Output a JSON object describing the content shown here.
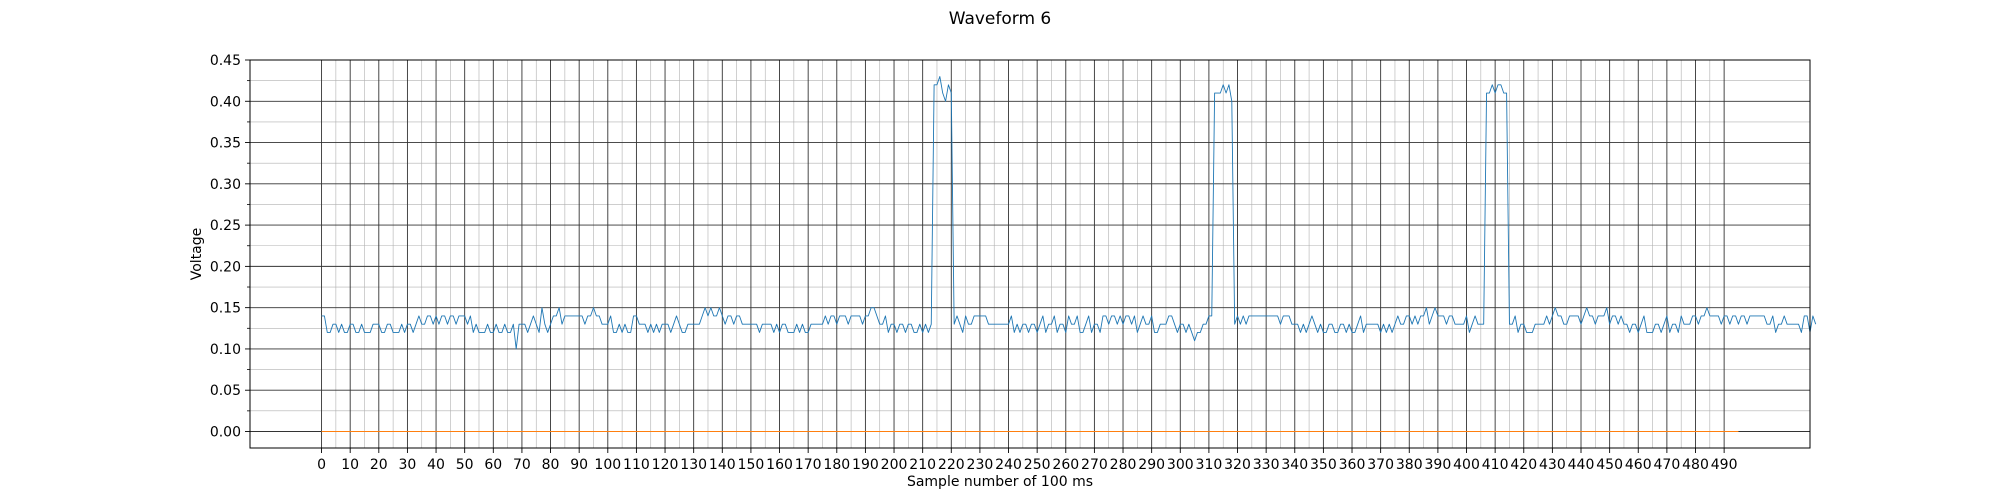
{
  "chart_data": {
    "type": "line",
    "title": "Waveform 6",
    "xlabel": "Sample number of 100 ms",
    "ylabel": "Voltage",
    "xlim": [
      -25,
      520
    ],
    "ylim": [
      -0.02,
      0.45
    ],
    "x_ticks": [
      0,
      10,
      20,
      30,
      40,
      50,
      60,
      70,
      80,
      90,
      100,
      110,
      120,
      130,
      140,
      150,
      160,
      170,
      180,
      190,
      200,
      210,
      220,
      230,
      240,
      250,
      260,
      270,
      280,
      290,
      300,
      310,
      320,
      330,
      340,
      350,
      360,
      370,
      380,
      390,
      400,
      410,
      420,
      430,
      440,
      450,
      460,
      470,
      480,
      490
    ],
    "x_minor_step": 5,
    "y_ticks": [
      "0.00",
      "0.05",
      "0.10",
      "0.15",
      "0.20",
      "0.25",
      "0.30",
      "0.35",
      "0.40",
      "0.45"
    ],
    "y_minor_step": 0.025,
    "grid": true,
    "series": [
      {
        "color": "#1f77b4",
        "x_start": 0,
        "x_step": 1,
        "values": [
          0.14,
          0.14,
          0.12,
          0.12,
          0.13,
          0.13,
          0.12,
          0.13,
          0.12,
          0.12,
          0.13,
          0.13,
          0.12,
          0.12,
          0.13,
          0.12,
          0.12,
          0.12,
          0.13,
          0.13,
          0.13,
          0.12,
          0.12,
          0.13,
          0.13,
          0.12,
          0.12,
          0.12,
          0.13,
          0.12,
          0.13,
          0.13,
          0.12,
          0.13,
          0.14,
          0.13,
          0.13,
          0.14,
          0.14,
          0.13,
          0.14,
          0.13,
          0.14,
          0.14,
          0.13,
          0.14,
          0.14,
          0.13,
          0.14,
          0.14,
          0.14,
          0.13,
          0.14,
          0.12,
          0.13,
          0.12,
          0.12,
          0.12,
          0.13,
          0.12,
          0.12,
          0.13,
          0.12,
          0.12,
          0.13,
          0.12,
          0.12,
          0.13,
          0.1,
          0.13,
          0.13,
          0.13,
          0.12,
          0.13,
          0.14,
          0.13,
          0.12,
          0.15,
          0.13,
          0.12,
          0.13,
          0.14,
          0.14,
          0.15,
          0.13,
          0.14,
          0.14,
          0.14,
          0.14,
          0.14,
          0.14,
          0.14,
          0.13,
          0.14,
          0.14,
          0.15,
          0.14,
          0.14,
          0.13,
          0.13,
          0.13,
          0.14,
          0.12,
          0.12,
          0.13,
          0.12,
          0.13,
          0.12,
          0.12,
          0.14,
          0.14,
          0.13,
          0.13,
          0.13,
          0.12,
          0.13,
          0.12,
          0.13,
          0.12,
          0.13,
          0.13,
          0.13,
          0.12,
          0.13,
          0.14,
          0.13,
          0.12,
          0.12,
          0.13,
          0.13,
          0.13,
          0.13,
          0.13,
          0.14,
          0.15,
          0.14,
          0.15,
          0.14,
          0.14,
          0.15,
          0.14,
          0.13,
          0.14,
          0.14,
          0.13,
          0.14,
          0.14,
          0.13,
          0.13,
          0.13,
          0.13,
          0.13,
          0.13,
          0.12,
          0.13,
          0.13,
          0.13,
          0.13,
          0.12,
          0.13,
          0.12,
          0.13,
          0.13,
          0.12,
          0.12,
          0.12,
          0.13,
          0.12,
          0.13,
          0.12,
          0.12,
          0.13,
          0.13,
          0.13,
          0.13,
          0.13,
          0.14,
          0.13,
          0.14,
          0.14,
          0.13,
          0.14,
          0.14,
          0.14,
          0.13,
          0.14,
          0.14,
          0.14,
          0.14,
          0.13,
          0.14,
          0.14,
          0.15,
          0.15,
          0.14,
          0.13,
          0.13,
          0.14,
          0.12,
          0.13,
          0.13,
          0.12,
          0.13,
          0.13,
          0.12,
          0.13,
          0.13,
          0.12,
          0.12,
          0.13,
          0.12,
          0.13,
          0.12,
          0.13,
          0.42,
          0.42,
          0.43,
          0.41,
          0.4,
          0.42,
          0.41,
          0.13,
          0.14,
          0.13,
          0.12,
          0.14,
          0.13,
          0.13,
          0.14,
          0.14,
          0.14,
          0.14,
          0.14,
          0.13,
          0.13,
          0.13,
          0.13,
          0.13,
          0.13,
          0.13,
          0.13,
          0.14,
          0.12,
          0.13,
          0.12,
          0.13,
          0.13,
          0.12,
          0.13,
          0.13,
          0.12,
          0.13,
          0.14,
          0.12,
          0.13,
          0.13,
          0.14,
          0.12,
          0.13,
          0.13,
          0.12,
          0.14,
          0.13,
          0.13,
          0.14,
          0.12,
          0.12,
          0.13,
          0.14,
          0.12,
          0.13,
          0.13,
          0.12,
          0.14,
          0.14,
          0.13,
          0.14,
          0.14,
          0.13,
          0.14,
          0.13,
          0.14,
          0.14,
          0.13,
          0.14,
          0.12,
          0.13,
          0.14,
          0.13,
          0.13,
          0.14,
          0.12,
          0.12,
          0.13,
          0.13,
          0.13,
          0.14,
          0.14,
          0.13,
          0.12,
          0.13,
          0.13,
          0.12,
          0.13,
          0.12,
          0.11,
          0.12,
          0.12,
          0.13,
          0.13,
          0.14,
          0.14,
          0.41,
          0.41,
          0.41,
          0.42,
          0.41,
          0.42,
          0.4,
          0.13,
          0.14,
          0.13,
          0.14,
          0.13,
          0.14,
          0.14,
          0.14,
          0.14,
          0.14,
          0.14,
          0.14,
          0.14,
          0.14,
          0.14,
          0.14,
          0.13,
          0.14,
          0.14,
          0.14,
          0.13,
          0.13,
          0.13,
          0.12,
          0.13,
          0.12,
          0.13,
          0.14,
          0.13,
          0.12,
          0.13,
          0.12,
          0.12,
          0.13,
          0.13,
          0.12,
          0.12,
          0.13,
          0.13,
          0.12,
          0.13,
          0.12,
          0.12,
          0.13,
          0.14,
          0.12,
          0.13,
          0.13,
          0.13,
          0.13,
          0.13,
          0.12,
          0.13,
          0.12,
          0.13,
          0.12,
          0.13,
          0.14,
          0.13,
          0.13,
          0.14,
          0.14,
          0.13,
          0.14,
          0.13,
          0.14,
          0.14,
          0.15,
          0.13,
          0.14,
          0.15,
          0.14,
          0.14,
          0.14,
          0.13,
          0.14,
          0.14,
          0.13,
          0.13,
          0.13,
          0.13,
          0.14,
          0.12,
          0.13,
          0.14,
          0.13,
          0.13,
          0.13,
          0.41,
          0.41,
          0.42,
          0.41,
          0.42,
          0.42,
          0.41,
          0.41,
          0.13,
          0.13,
          0.14,
          0.12,
          0.13,
          0.13,
          0.12,
          0.12,
          0.12,
          0.13,
          0.13,
          0.13,
          0.13,
          0.14,
          0.13,
          0.14,
          0.15,
          0.14,
          0.14,
          0.13,
          0.13,
          0.14,
          0.14,
          0.14,
          0.14,
          0.13,
          0.14,
          0.15,
          0.14,
          0.14,
          0.13,
          0.14,
          0.14,
          0.14,
          0.15,
          0.13,
          0.14,
          0.14,
          0.13,
          0.14,
          0.13,
          0.13,
          0.12,
          0.13,
          0.13,
          0.12,
          0.13,
          0.14,
          0.12,
          0.12,
          0.12,
          0.13,
          0.13,
          0.12,
          0.13,
          0.14,
          0.12,
          0.13,
          0.13,
          0.12,
          0.14,
          0.13,
          0.13,
          0.13,
          0.14,
          0.14,
          0.13,
          0.14,
          0.14,
          0.15,
          0.14,
          0.14,
          0.14,
          0.14,
          0.13,
          0.14,
          0.14,
          0.13,
          0.14,
          0.14,
          0.13,
          0.14,
          0.14,
          0.13,
          0.14,
          0.14,
          0.14,
          0.14,
          0.14,
          0.14,
          0.13,
          0.13,
          0.14,
          0.12,
          0.13,
          0.13,
          0.14,
          0.13,
          0.13,
          0.13,
          0.13,
          0.13,
          0.12,
          0.14,
          0.14,
          0.12,
          0.14,
          0.13
        ]
      },
      {
        "color": "#ff7f0e",
        "x": [
          0,
          495
        ],
        "values": [
          0,
          0
        ]
      }
    ]
  }
}
